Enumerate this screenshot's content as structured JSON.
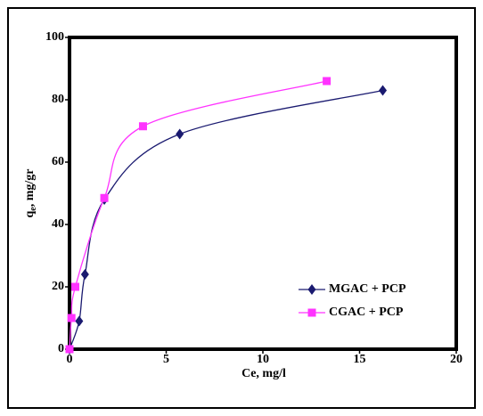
{
  "chart_data": {
    "type": "line",
    "x_label": "Ce, mg/l",
    "y_label": [
      "q",
      "e",
      ", mg/gr"
    ],
    "xlim": [
      0,
      20
    ],
    "xticks": [
      0,
      5,
      10,
      15,
      20
    ],
    "ylim": [
      0,
      100
    ],
    "yticks": [
      0,
      20,
      40,
      60,
      80,
      100
    ],
    "legend": "lower right",
    "series": [
      {
        "name": "MGAC + PCP",
        "color": "#1a1a70",
        "marker": "diamond",
        "x": [
          0,
          0.5,
          0.8,
          1.8,
          5.7,
          16.2
        ],
        "values": [
          0,
          9,
          24,
          48,
          69,
          83
        ]
      },
      {
        "name": "CGAC + PCP",
        "color": "#ff33ff",
        "marker": "square",
        "x": [
          0,
          0.1,
          0.3,
          1.8,
          3.8,
          13.3
        ],
        "values": [
          0,
          10,
          20,
          48.5,
          71.5,
          86
        ]
      }
    ]
  }
}
